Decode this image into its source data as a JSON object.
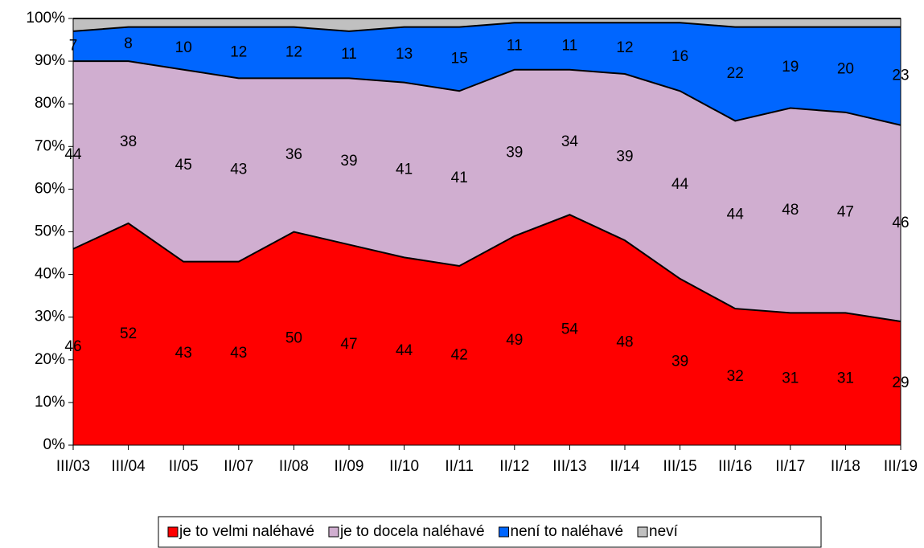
{
  "chart_data": {
    "type": "stacked_area",
    "categories": [
      "III/03",
      "III/04",
      "II/05",
      "II/07",
      "II/08",
      "II/09",
      "II/10",
      "II/11",
      "II/12",
      "III/13",
      "II/14",
      "III/15",
      "III/16",
      "II/17",
      "II/18",
      "III/19"
    ],
    "series": [
      {
        "name": "je to velmi naléhavé",
        "color": "#ff0000",
        "values": [
          46,
          52,
          43,
          43,
          50,
          47,
          44,
          42,
          49,
          54,
          48,
          39,
          32,
          31,
          31,
          29
        ],
        "labels": true
      },
      {
        "name": "je to docela naléhavé",
        "color": "#d0aed0",
        "values": [
          44,
          38,
          45,
          43,
          36,
          39,
          41,
          41,
          39,
          34,
          39,
          44,
          44,
          48,
          47,
          46
        ],
        "labels": true
      },
      {
        "name": "není to naléhavé",
        "color": "#0066ff",
        "values": [
          7,
          8,
          10,
          12,
          12,
          11,
          13,
          15,
          11,
          11,
          12,
          16,
          22,
          19,
          20,
          23
        ],
        "labels": true
      },
      {
        "name": "neví",
        "color": "#c0c0c0",
        "values": [
          3,
          2,
          2,
          2,
          2,
          3,
          2,
          2,
          1,
          1,
          1,
          1,
          2,
          2,
          2,
          2
        ],
        "labels": false
      }
    ],
    "ylim": [
      0,
      100
    ],
    "yticks": [
      {
        "value": 0,
        "label": "0%"
      },
      {
        "value": 10,
        "label": "10%"
      },
      {
        "value": 20,
        "label": "20%"
      },
      {
        "value": 30,
        "label": "30%"
      },
      {
        "value": 40,
        "label": "40%"
      },
      {
        "value": 50,
        "label": "50%"
      },
      {
        "value": 60,
        "label": "60%"
      },
      {
        "value": 70,
        "label": "70%"
      },
      {
        "value": 80,
        "label": "80%"
      },
      {
        "value": 90,
        "label": "90%"
      },
      {
        "value": 100,
        "label": "100%"
      }
    ],
    "legend": "bottom"
  }
}
